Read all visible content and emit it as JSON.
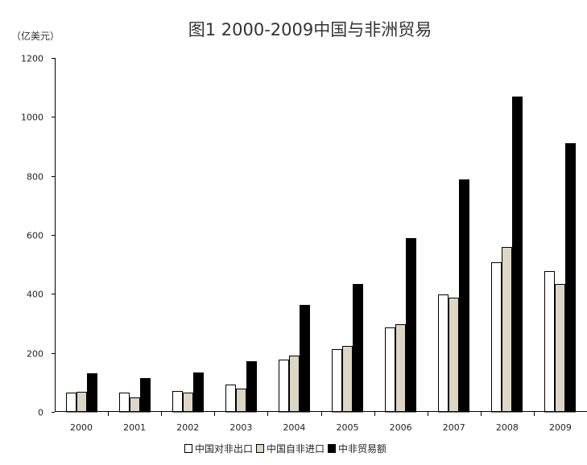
{
  "chart_data": {
    "type": "bar",
    "title": "图1 2000-2009中国与非洲贸易",
    "unit_label": "（亿美元）",
    "categories": [
      "2000",
      "2001",
      "2002",
      "2003",
      "2004",
      "2005",
      "2006",
      "2007",
      "2008",
      "2009"
    ],
    "series": [
      {
        "name": "中国对非出口",
        "color": "#ffffff",
        "values": [
          65,
          65,
          70,
          92,
          178,
          212,
          287,
          399,
          508,
          477
        ]
      },
      {
        "name": "中国自非进口",
        "color": "#dcd6c4",
        "values": [
          68,
          50,
          65,
          80,
          190,
          223,
          298,
          388,
          560,
          433
        ]
      },
      {
        "name": "中非贸易额",
        "color": "#000000",
        "values": [
          130,
          114,
          135,
          172,
          362,
          433,
          588,
          787,
          1068,
          910
        ]
      }
    ],
    "ylim": [
      0,
      1200
    ],
    "yticks": [
      0,
      200,
      400,
      600,
      800,
      1000,
      1200
    ],
    "xlabel": "",
    "ylabel": "",
    "grid": false,
    "legend_position": "bottom"
  }
}
